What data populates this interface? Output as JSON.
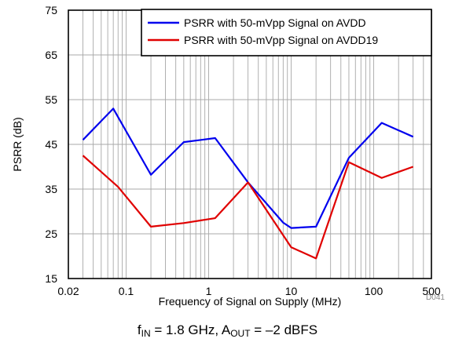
{
  "chart_data": {
    "type": "line",
    "xscale": "log",
    "xlim": [
      0.02,
      500
    ],
    "ylim": [
      15,
      75
    ],
    "xticks": [
      0.02,
      0.1,
      1,
      10,
      100,
      500
    ],
    "xtick_labels": [
      "0.02",
      "0.1",
      "1",
      "10",
      "100",
      "500"
    ],
    "yticks": [
      15,
      25,
      35,
      45,
      55,
      65,
      75
    ],
    "ytick_labels": [
      "15",
      "25",
      "35",
      "45",
      "55",
      "65",
      "75"
    ],
    "xlabel": "Frequency of Signal on Supply (MHz)",
    "ylabel": "PSRR (dB)",
    "grid": true,
    "legend_position": "top-right",
    "series": [
      {
        "name": "PSRR with 50-mVpp Signal on AVDD",
        "color": "#0000ee",
        "x": [
          0.03,
          0.07,
          0.2,
          0.5,
          1.2,
          3,
          8,
          10,
          20,
          50,
          125,
          300
        ],
        "y": [
          46,
          53,
          38.2,
          45.5,
          46.4,
          36.5,
          27.5,
          26.3,
          26.6,
          42,
          49.8,
          46.7
        ]
      },
      {
        "name": "PSRR with 50-mVpp Signal on AVDD19",
        "color": "#e00000",
        "x": [
          0.03,
          0.08,
          0.2,
          0.5,
          1.2,
          3,
          10,
          20,
          50,
          125,
          300
        ],
        "y": [
          42.5,
          35.5,
          26.6,
          27.4,
          28.5,
          36.5,
          22,
          19.5,
          41,
          37.5,
          40
        ]
      }
    ]
  },
  "figure_id": "D041",
  "caption": {
    "part1": "f",
    "part1_sub": "IN",
    "part2": " = 1.8 GHz, A",
    "part2_sub": "OUT",
    "part3": " = –2 dBFS"
  }
}
